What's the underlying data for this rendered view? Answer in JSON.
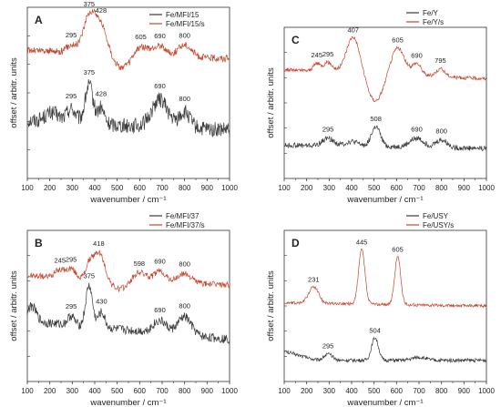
{
  "chart_data": [
    {
      "id": "A",
      "type": "line",
      "panel_label": "A",
      "xlabel": "wavenumber / cm⁻¹",
      "ylabel": "offset / arbitr. units",
      "xlim": [
        100,
        1000
      ],
      "ylim": [
        0,
        1
      ],
      "x_ticks": [
        "100",
        "200",
        "300",
        "400",
        "500",
        "600",
        "700",
        "800",
        "900",
        "1000"
      ],
      "legend": {
        "position": "top-right"
      },
      "series": [
        {
          "name": "Fe/MFI/15",
          "color": "#3a3a3a",
          "offset": 0.32,
          "noise": 0.045,
          "baseline": [
            [
              100,
              0.02
            ],
            [
              1000,
              -0.04
            ]
          ],
          "peaks": [
            [
              295,
              0.08,
              20
            ],
            [
              375,
              0.22,
              18
            ],
            [
              428,
              0.09,
              14
            ],
            [
              690,
              0.16,
              35
            ],
            [
              800,
              0.09,
              25
            ],
            [
              210,
              0.05,
              30
            ]
          ],
          "annotations": [
            {
              "x": 295,
              "text": "295"
            },
            {
              "x": 375,
              "text": "375"
            },
            {
              "x": 428,
              "text": "428"
            },
            {
              "x": 690,
              "text": "690"
            },
            {
              "x": 800,
              "text": "800"
            }
          ]
        },
        {
          "name": "Fe/MFI/15/s",
          "color": "#c6462c",
          "offset": 0.75,
          "noise": 0.02,
          "baseline": [
            [
              100,
              0.0
            ],
            [
              1000,
              -0.05
            ]
          ],
          "peaks": [
            [
              295,
              0.04,
              20
            ],
            [
              375,
              0.2,
              28
            ],
            [
              428,
              0.16,
              30
            ],
            [
              605,
              0.06,
              30
            ],
            [
              690,
              0.06,
              25
            ],
            [
              800,
              0.07,
              30
            ]
          ],
          "dips": [
            [
              520,
              0.08,
              45
            ]
          ],
          "annotations": [
            {
              "x": 295,
              "text": "295"
            },
            {
              "x": 375,
              "text": "375"
            },
            {
              "x": 428,
              "text": "428"
            },
            {
              "x": 605,
              "text": "605"
            },
            {
              "x": 690,
              "text": "690"
            },
            {
              "x": 800,
              "text": "800"
            }
          ]
        }
      ]
    },
    {
      "id": "C",
      "type": "line",
      "panel_label": "C",
      "xlabel": "wavenumber / cm⁻¹",
      "ylabel": "offset / arbitr. units",
      "xlim": [
        100,
        1000
      ],
      "ylim": [
        0,
        1
      ],
      "x_ticks": [
        "100",
        "200",
        "300",
        "400",
        "500",
        "600",
        "700",
        "800",
        "900",
        "1000"
      ],
      "legend": {
        "position": "top-right"
      },
      "series": [
        {
          "name": "Fe/Y",
          "color": "#3a3a3a",
          "offset": 0.22,
          "noise": 0.018,
          "baseline": [
            [
              100,
              0.0
            ],
            [
              1000,
              -0.02
            ]
          ],
          "peaks": [
            [
              295,
              0.05,
              25
            ],
            [
              508,
              0.13,
              20
            ],
            [
              690,
              0.06,
              30
            ],
            [
              800,
              0.05,
              25
            ],
            [
              400,
              0.03,
              30
            ]
          ],
          "annotations": [
            {
              "x": 295,
              "text": "295"
            },
            {
              "x": 508,
              "text": "508"
            },
            {
              "x": 690,
              "text": "690"
            },
            {
              "x": 800,
              "text": "800"
            }
          ]
        },
        {
          "name": "Fe/Y/s",
          "color": "#c6462c",
          "offset": 0.72,
          "noise": 0.012,
          "baseline": [
            [
              100,
              0.0
            ],
            [
              1000,
              -0.06
            ]
          ],
          "peaks": [
            [
              245,
              0.05,
              15
            ],
            [
              295,
              0.06,
              20
            ],
            [
              407,
              0.24,
              30
            ],
            [
              605,
              0.18,
              30
            ],
            [
              690,
              0.08,
              20
            ],
            [
              795,
              0.05,
              20
            ]
          ],
          "dips": [
            [
              505,
              0.18,
              35
            ]
          ],
          "annotations": [
            {
              "x": 245,
              "text": "245"
            },
            {
              "x": 295,
              "text": "295"
            },
            {
              "x": 407,
              "text": "407"
            },
            {
              "x": 605,
              "text": "605"
            },
            {
              "x": 690,
              "text": "690"
            },
            {
              "x": 795,
              "text": "795"
            }
          ]
        }
      ]
    },
    {
      "id": "B",
      "type": "line",
      "panel_label": "B",
      "xlabel": "wavenumber / cm⁻¹",
      "ylabel": "offset / arbitr. units",
      "xlim": [
        100,
        1000
      ],
      "ylim": [
        0,
        1
      ],
      "x_ticks": [
        "100",
        "200",
        "300",
        "400",
        "500",
        "600",
        "700",
        "800",
        "900",
        "1000"
      ],
      "legend": {
        "position": "top-right"
      },
      "series": [
        {
          "name": "Fe/MFI/37",
          "color": "#3a3a3a",
          "offset": 0.36,
          "noise": 0.03,
          "baseline": [
            [
              100,
              0.04
            ],
            [
              1000,
              -0.08
            ]
          ],
          "peaks": [
            [
              120,
              0.1,
              20
            ],
            [
              295,
              0.06,
              15
            ],
            [
              375,
              0.27,
              15
            ],
            [
              430,
              0.1,
              15
            ],
            [
              690,
              0.08,
              30
            ],
            [
              800,
              0.12,
              30
            ]
          ],
          "annotations": [
            {
              "x": 295,
              "text": "295"
            },
            {
              "x": 375,
              "text": "375"
            },
            {
              "x": 430,
              "text": "430"
            },
            {
              "x": 690,
              "text": "690"
            },
            {
              "x": 800,
              "text": "800"
            }
          ]
        },
        {
          "name": "Fe/MFI/37/s",
          "color": "#c6462c",
          "offset": 0.7,
          "noise": 0.02,
          "baseline": [
            [
              100,
              0.0
            ],
            [
              1000,
              -0.06
            ]
          ],
          "peaks": [
            [
              245,
              0.05,
              20
            ],
            [
              295,
              0.06,
              18
            ],
            [
              375,
              0.08,
              15
            ],
            [
              418,
              0.18,
              25
            ],
            [
              598,
              0.06,
              30
            ],
            [
              690,
              0.07,
              25
            ],
            [
              800,
              0.06,
              30
            ]
          ],
          "dips": [
            [
              510,
              0.06,
              40
            ]
          ],
          "annotations": [
            {
              "x": 245,
              "text": "245"
            },
            {
              "x": 295,
              "text": "295"
            },
            {
              "x": 418,
              "text": "418"
            },
            {
              "x": 598,
              "text": "598"
            },
            {
              "x": 690,
              "text": "690"
            },
            {
              "x": 800,
              "text": "800"
            }
          ]
        }
      ]
    },
    {
      "id": "D",
      "type": "line",
      "panel_label": "D",
      "xlabel": "wavenumber / cm⁻¹",
      "ylabel": "offset / arbitr. units",
      "xlim": [
        100,
        1000
      ],
      "ylim": [
        0,
        1
      ],
      "x_ticks": [
        "100",
        "200",
        "300",
        "400",
        "500",
        "600",
        "700",
        "800",
        "900",
        "1000"
      ],
      "legend": {
        "position": "top-right"
      },
      "series": [
        {
          "name": "Fe/USY",
          "color": "#3a3a3a",
          "offset": 0.14,
          "noise": 0.012,
          "baseline": [
            [
              100,
              0.06
            ],
            [
              250,
              0.0
            ],
            [
              1000,
              0.0
            ]
          ],
          "peaks": [
            [
              295,
              0.04,
              20
            ],
            [
              504,
              0.15,
              15
            ],
            [
              700,
              0.02,
              30
            ]
          ],
          "annotations": [
            {
              "x": 295,
              "text": "295"
            },
            {
              "x": 504,
              "text": "504"
            }
          ]
        },
        {
          "name": "Fe/USY/s",
          "color": "#c6462c",
          "offset": 0.52,
          "noise": 0.01,
          "baseline": [
            [
              100,
              0.0
            ],
            [
              1000,
              -0.02
            ]
          ],
          "peaks": [
            [
              231,
              0.11,
              22
            ],
            [
              445,
              0.36,
              14
            ],
            [
              605,
              0.32,
              13
            ]
          ],
          "annotations": [
            {
              "x": 231,
              "text": "231"
            },
            {
              "x": 445,
              "text": "445"
            },
            {
              "x": 605,
              "text": "605"
            }
          ]
        }
      ]
    }
  ]
}
